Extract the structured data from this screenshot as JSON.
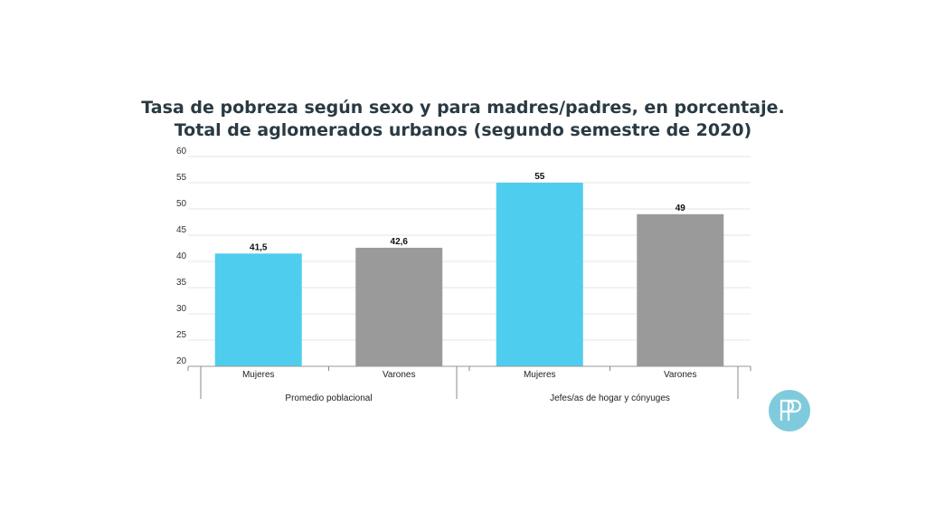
{
  "chart_data": {
    "type": "bar",
    "title": "Tasa de pobreza según sexo y para madres/padres, en porcentaje. Total de aglomerados urbanos (segundo semestre de 2020)",
    "categories": [
      "Mujeres",
      "Varones",
      "Mujeres",
      "Varones"
    ],
    "groups": [
      {
        "label": "Promedio poblacional",
        "categories": [
          0,
          1
        ]
      },
      {
        "label": "Jefes/as de hogar y cónyuges",
        "categories": [
          2,
          3
        ]
      }
    ],
    "values": [
      41.5,
      42.6,
      55,
      49
    ],
    "data_labels": [
      "41,5",
      "42,6",
      "55",
      "49"
    ],
    "bar_colors": [
      "#4ecdee",
      "#9a9a9a",
      "#4ecdee",
      "#9a9a9a"
    ],
    "ylim": [
      20,
      60
    ],
    "yticks": [
      20,
      25,
      30,
      35,
      40,
      45,
      50,
      55,
      60
    ],
    "grid": true,
    "xlabel": "",
    "ylabel": ""
  },
  "logo": {
    "icon": "pp-monogram-icon",
    "color": "#7fcbdc"
  }
}
